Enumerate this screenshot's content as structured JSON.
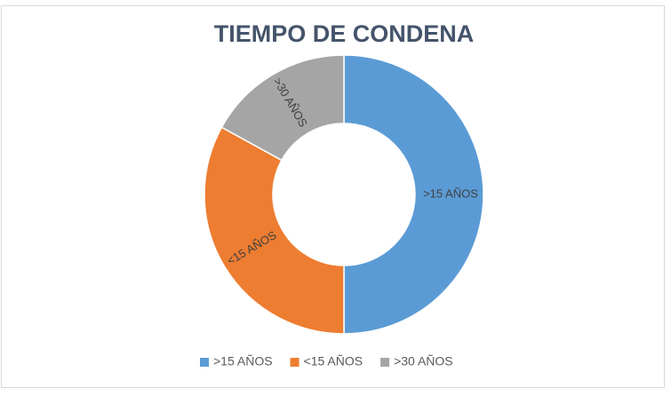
{
  "chart_data": {
    "type": "donut",
    "title": "TIEMPO DE CONDENA",
    "categories": [
      ">15 AÑOS",
      "<15 AÑOS",
      ">30 AÑOS"
    ],
    "values": [
      50,
      33,
      17
    ],
    "colors": [
      "#5b9bd5",
      "#ed7d31",
      "#a5a5a5"
    ],
    "legend": "bottom"
  }
}
